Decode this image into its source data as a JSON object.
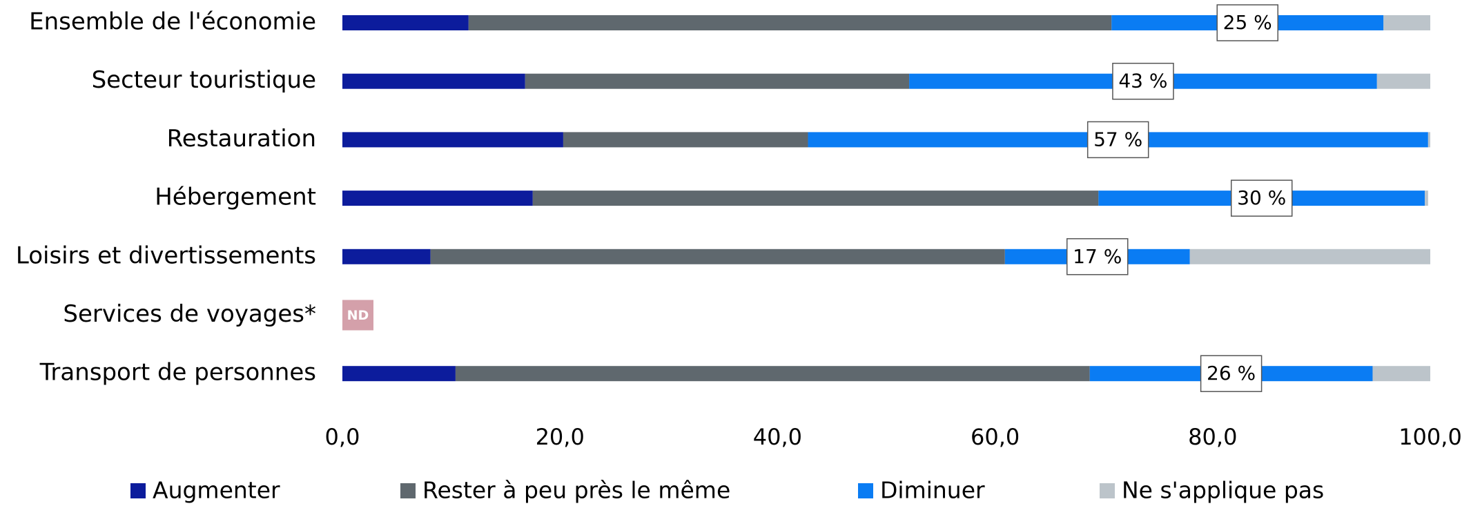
{
  "chart_data": {
    "type": "stacked-barh",
    "categories": [
      "Ensemble de l'économie",
      "Secteur touristique",
      "Restauration",
      "Hébergement",
      "Loisirs et divertissements",
      "Services de voyages*",
      "Transport de personnes"
    ],
    "series": [
      {
        "name": "Augmenter",
        "color": "#0c1c9c",
        "values": [
          11.6,
          16.8,
          20.3,
          17.5,
          8.1,
          null,
          10.4
        ]
      },
      {
        "name": "Rester à peu près le même",
        "color": "#5f686e",
        "values": [
          59.1,
          35.3,
          22.5,
          52,
          52.8,
          null,
          58.3
        ]
      },
      {
        "name": "Diminuer",
        "color": "#0a7cf3",
        "values": [
          25,
          43,
          57,
          30,
          17,
          null,
          26
        ],
        "value_labels": [
          "25 %",
          "43 %",
          "57 %",
          "30 %",
          "17 %",
          null,
          "26 %"
        ]
      },
      {
        "name": "Ne s'applique pas",
        "color": "#bcc4ca",
        "values": [
          4.3,
          4.9,
          0.2,
          0.3,
          22.1,
          null,
          5.3
        ]
      }
    ],
    "annotations": [
      {
        "category": "Services de voyages*",
        "text": "ND",
        "color": "#d4a0aa"
      }
    ],
    "xlim": [
      0,
      100
    ],
    "xticks": [
      {
        "value": 0,
        "label": "0,0"
      },
      {
        "value": 20,
        "label": "20,0"
      },
      {
        "value": 40,
        "label": "40,0"
      },
      {
        "value": 60,
        "label": "60,0"
      },
      {
        "value": 80,
        "label": "80,0"
      },
      {
        "value": 100,
        "label": "100,0"
      }
    ],
    "legend": "bottom"
  }
}
